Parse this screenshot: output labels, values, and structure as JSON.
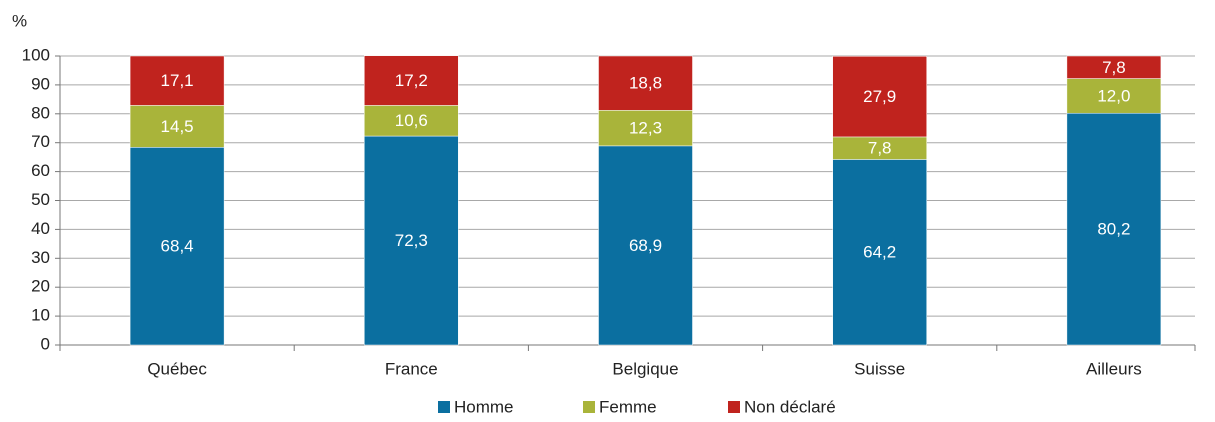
{
  "chart_data": {
    "type": "stacked_bar",
    "y_axis_label": "%",
    "categories": [
      "Québec",
      "France",
      "Belgique",
      "Suisse",
      "Ailleurs"
    ],
    "series": [
      {
        "name": "Homme",
        "color": "#0b6fa0",
        "values": [
          68.4,
          72.3,
          68.9,
          64.2,
          80.2
        ],
        "value_labels": [
          "68,4",
          "72,3",
          "68,9",
          "64,2",
          "80,2"
        ]
      },
      {
        "name": "Femme",
        "color": "#a9b43a",
        "values": [
          14.5,
          10.6,
          12.3,
          7.8,
          12.0
        ],
        "value_labels": [
          "14,5",
          "10,6",
          "12,3",
          "7,8",
          "12,0"
        ]
      },
      {
        "name": "Non déclaré",
        "color": "#c0231e",
        "values": [
          17.1,
          17.2,
          18.8,
          27.9,
          7.8
        ],
        "value_labels": [
          "17,1",
          "17,2",
          "18,8",
          "27,9",
          "7,8"
        ]
      }
    ],
    "ylim": [
      0,
      100
    ],
    "yticks": [
      0,
      10,
      20,
      30,
      40,
      50,
      60,
      70,
      80,
      90,
      100
    ],
    "grid": true,
    "legend": "bottom"
  }
}
